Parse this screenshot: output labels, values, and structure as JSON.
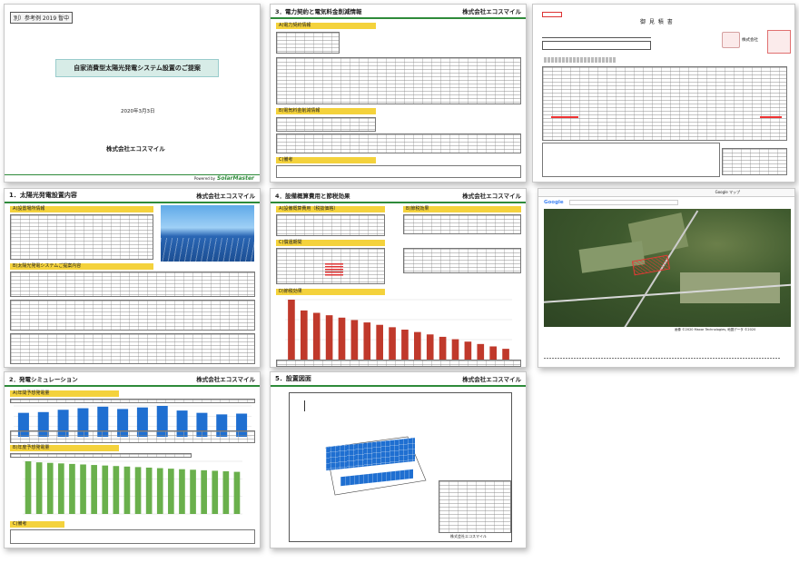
{
  "cover": {
    "stamp": "別）参考例 2019 暫中",
    "title": "自家消費型太陽光発電システム設置のご提案",
    "date": "2020年3月3日",
    "company": "株式会社エコスマイル",
    "powered": "Powered by",
    "brand": "SolarMaster"
  },
  "p3": {
    "title": "3．電力契約と電気料金削減情報",
    "company": "株式会社エコスマイル",
    "sec1": "A)電力契約情報",
    "sec2": "B)電気料金削減情報",
    "sec3": "C)備考"
  },
  "estimate": {
    "title": "御 見 積 書",
    "company": "株式会社"
  },
  "p1": {
    "title": "1．太陽光発電設置内容",
    "company": "株式会社エコスマイル",
    "sec1": "A)設置場所情報",
    "sec2": "B)太陽光発電システムご提案内容"
  },
  "p4": {
    "title": "4．設備概算費用と節税効果",
    "company": "株式会社エコスマイル",
    "sec1": "A)設備概算費用（税抜価格）",
    "sec2": "B)節税効果",
    "sec3": "C)償還期間",
    "sec4": "D)節税効果"
  },
  "map": {
    "search": "Google マップ",
    "brand": "Google",
    "footer": "画像 ©2020 Maxar Technologies, 地図データ ©2020"
  },
  "p2": {
    "title": "2．発電シミュレーション",
    "company": "株式会社エコスマイル",
    "sec1": "A)年間予想発電量",
    "sec2": "B)年度予想発電量",
    "sec3": "C)備考"
  },
  "p5": {
    "title": "5．設置図面",
    "company": "株式会社エコスマイル",
    "footer": "株式会社エコスマイル"
  },
  "colors": {
    "green": "#2e8b3a",
    "yellow": "#f4d23c",
    "blue_bar": "#1f6fd1",
    "red_bar": "#c0392b",
    "green_bar": "#6ab04c"
  },
  "chart_data": [
    {
      "type": "bar",
      "title": "A)年間予想発電量",
      "values": [
        62,
        64,
        70,
        74,
        78,
        72,
        76,
        80,
        68,
        62,
        58,
        60
      ]
    },
    {
      "type": "bar",
      "title": "B)年度予想発電量",
      "values": [
        100,
        98,
        97,
        96,
        95,
        94,
        93,
        92,
        91,
        90,
        89,
        88,
        87,
        86,
        85,
        84,
        83,
        82,
        81,
        80
      ]
    },
    {
      "type": "bar",
      "title": "D)節税効果",
      "values": [
        100,
        82,
        78,
        74,
        70,
        66,
        62,
        58,
        54,
        50,
        46,
        42,
        38,
        34,
        30,
        26,
        22,
        18
      ]
    }
  ]
}
